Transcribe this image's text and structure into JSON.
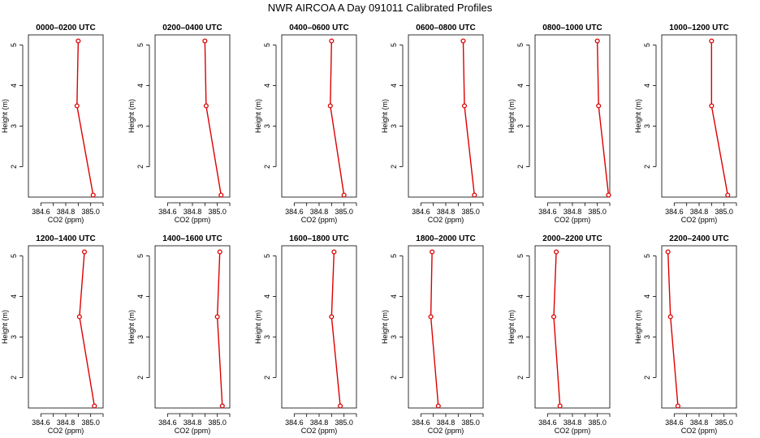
{
  "title": "NWR AIRCOA A  Day 091011  Calibrated Profiles",
  "colors": {
    "series": "#dd0000",
    "axis": "#000000",
    "background": "#ffffff"
  },
  "chart_data": {
    "type": "line",
    "xlabel": "CO2 (ppm)",
    "ylabel": "Height (m)",
    "xlim": [
      384.5,
      385.1
    ],
    "ylim": [
      1.25,
      5.25
    ],
    "x_ticks": [
      384.6,
      384.7,
      384.8,
      384.9,
      385.0,
      385.1
    ],
    "x_tick_labels": [
      "384.6",
      "384.8",
      "385.0"
    ],
    "y_ticks": [
      2,
      3,
      4,
      5
    ],
    "heights": [
      1.3,
      3.5,
      5.1
    ],
    "panels": [
      {
        "title": "0000–0200 UTC",
        "co2": [
          385.02,
          384.89,
          384.9
        ]
      },
      {
        "title": "0200–0400 UTC",
        "co2": [
          385.03,
          384.91,
          384.9
        ]
      },
      {
        "title": "0400–0600 UTC",
        "co2": [
          385.0,
          384.89,
          384.9
        ]
      },
      {
        "title": "0600–0800 UTC",
        "co2": [
          385.03,
          384.95,
          384.94
        ]
      },
      {
        "title": "0800–1000 UTC",
        "co2": [
          385.09,
          385.01,
          385.0
        ]
      },
      {
        "title": "1000–1200 UTC",
        "co2": [
          385.03,
          384.9,
          384.9
        ]
      },
      {
        "title": "1200–1400 UTC",
        "co2": [
          385.03,
          384.91,
          384.95
        ]
      },
      {
        "title": "1400–1600 UTC",
        "co2": [
          385.04,
          385.0,
          385.02
        ]
      },
      {
        "title": "1600–1800 UTC",
        "co2": [
          384.97,
          384.9,
          384.92
        ]
      },
      {
        "title": "1800–2000 UTC",
        "co2": [
          384.74,
          384.68,
          384.69
        ]
      },
      {
        "title": "2000–2200 UTC",
        "co2": [
          384.7,
          384.65,
          384.67
        ]
      },
      {
        "title": "2200–2400 UTC",
        "co2": [
          384.63,
          384.57,
          384.55
        ]
      }
    ]
  }
}
